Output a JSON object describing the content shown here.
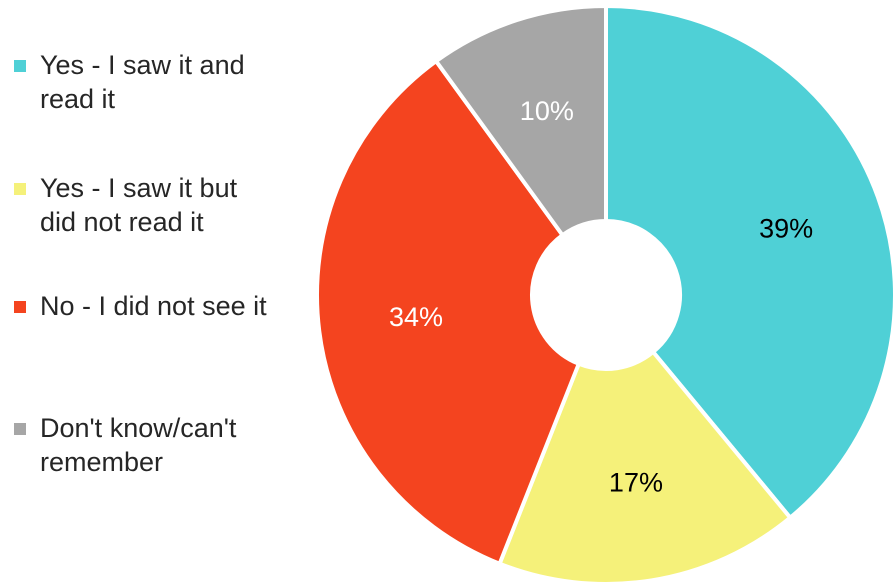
{
  "chart_data": {
    "type": "pie",
    "donut": true,
    "title": "",
    "categories": [
      "Yes - I saw it and read it",
      "Yes - I saw it but did not read it",
      "No - I did not see it",
      "Don't know/can't remember"
    ],
    "values": [
      39,
      17,
      34,
      10
    ],
    "data_labels": [
      "39%",
      "17%",
      "34%",
      "10%"
    ],
    "colors": [
      "#4fd0d6",
      "#f5f17a",
      "#f4441f",
      "#a6a6a6"
    ],
    "label_colors": [
      "#000000",
      "#000000",
      "#ffffff",
      "#ffffff"
    ],
    "legend_placement": "left",
    "start": "top",
    "direction": "clockwise"
  },
  "legend": [
    {
      "label": "Yes - I saw it and\nread it",
      "color": "#4fd0d6"
    },
    {
      "label": "Yes - I saw it but\ndid not read it",
      "color": "#f5f17a"
    },
    {
      "label": "No - I did not see it",
      "color": "#f4441f"
    },
    {
      "label": "Don't know/can't\nremember",
      "color": "#a6a6a6"
    }
  ]
}
